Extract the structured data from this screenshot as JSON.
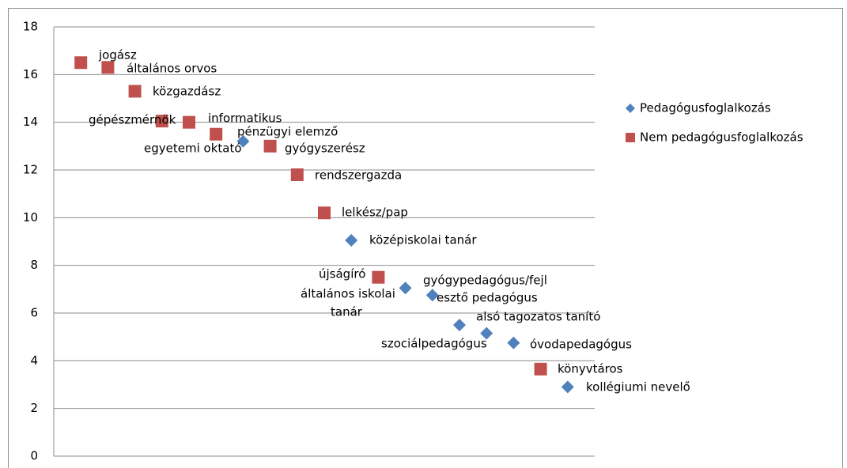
{
  "chart_data": {
    "type": "scatter",
    "xlim": [
      0,
      20
    ],
    "ylim": [
      0,
      18
    ],
    "yticks": [
      0,
      2,
      4,
      6,
      8,
      10,
      12,
      14,
      16,
      18
    ],
    "grid": true,
    "legend": "right",
    "series": [
      {
        "name": "Pedagógusfoglalkozás",
        "color": "#4f81bd",
        "marker": "diamond",
        "x": [
          7,
          11,
          13,
          14,
          15,
          16,
          17,
          19
        ],
        "values": [
          13.2,
          9.05,
          7.05,
          6.75,
          5.5,
          5.15,
          4.75,
          2.9
        ],
        "labels": [
          [
            "egyetemi oktató"
          ],
          [
            "középiskolai tanár"
          ],
          [
            "általános iskolai",
            "tanár"
          ],
          [
            "gyógypedagógus/fejl",
            "esztő pedagógus"
          ],
          [
            "szociálpedagógus"
          ],
          [
            "alsó tagozatos tanító"
          ],
          [
            "óvodapedagógus"
          ],
          [
            "kollégiumi nevelő"
          ]
        ]
      },
      {
        "name": "Nem pedagógusfoglalkozás",
        "color": "#c0504d",
        "marker": "square",
        "x": [
          1,
          2,
          3,
          4,
          5,
          6,
          8,
          9,
          10,
          12,
          18
        ],
        "values": [
          16.5,
          16.3,
          15.3,
          14.05,
          14.0,
          13.5,
          13.0,
          11.8,
          10.2,
          7.5,
          3.65
        ],
        "labels": [
          [
            "jogász"
          ],
          [
            "általános orvos"
          ],
          [
            "közgazdász"
          ],
          [
            "gépészmérnök"
          ],
          [
            "informatikus"
          ],
          [
            "pénzügyi elemző"
          ],
          [
            "gyógyszerész"
          ],
          [
            "rendszergazda"
          ],
          [
            "lelkész/pap"
          ],
          [
            "újságíró"
          ],
          [
            "könyvtáros"
          ]
        ]
      }
    ]
  }
}
